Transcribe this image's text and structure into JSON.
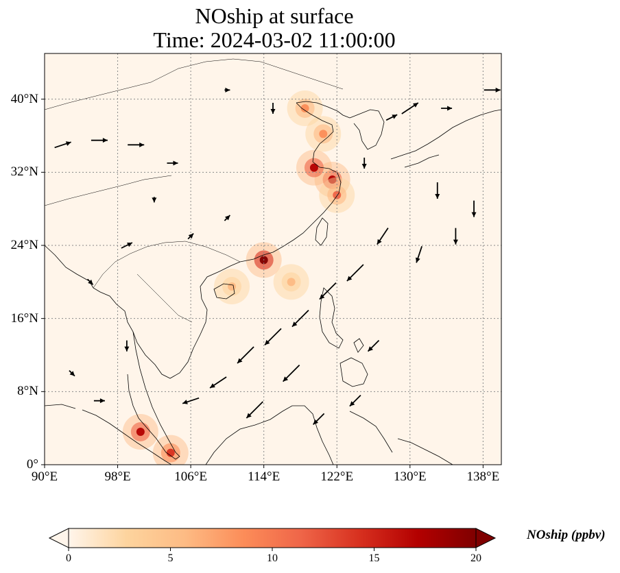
{
  "title": {
    "line1": "NOship at surface",
    "line2": "Time: 2024-03-02 11:00:00"
  },
  "map": {
    "lon_range": [
      90,
      140
    ],
    "lat_range": [
      0,
      45
    ],
    "lon_ticks": [
      "90°E",
      "98°E",
      "106°E",
      "114°E",
      "122°E",
      "130°E",
      "138°E"
    ],
    "lat_ticks": [
      "0°",
      "8°N",
      "16°N",
      "24°N",
      "32°N",
      "40°N"
    ],
    "gridlines": true,
    "background_color": "#fff5ea",
    "coastline_color": "#000000"
  },
  "colorbar": {
    "label": "NOship (ppbv)",
    "ticks": [
      "0",
      "5",
      "10",
      "15",
      "20"
    ],
    "range": [
      0,
      20
    ],
    "extend": "both",
    "colormap": [
      "#fff5eb",
      "#fdd49e",
      "#fdbb84",
      "#fc8d59",
      "#ef6548",
      "#d7301f",
      "#b30000",
      "#7f0000"
    ]
  },
  "chart_data": {
    "type": "heatmap",
    "variable": "NOship",
    "units": "ppbv",
    "hotspots": [
      {
        "lon": 114.0,
        "lat": 22.4,
        "value": 20
      },
      {
        "lon": 121.5,
        "lat": 31.2,
        "value": 18
      },
      {
        "lon": 119.5,
        "lat": 32.5,
        "value": 17
      },
      {
        "lon": 100.5,
        "lat": 3.6,
        "value": 16
      },
      {
        "lon": 103.8,
        "lat": 1.3,
        "value": 15
      },
      {
        "lon": 120.5,
        "lat": 36.2,
        "value": 8
      },
      {
        "lon": 118.5,
        "lat": 39.0,
        "value": 9
      },
      {
        "lon": 122.0,
        "lat": 29.5,
        "value": 10
      },
      {
        "lon": 110.5,
        "lat": 19.5,
        "value": 6
      },
      {
        "lon": 117.0,
        "lat": 20.0,
        "value": 5
      }
    ],
    "wind_vectors": [
      {
        "lon": 92,
        "lat": 35,
        "u": 3,
        "v": 1
      },
      {
        "lon": 96,
        "lat": 35.5,
        "u": 3,
        "v": 0
      },
      {
        "lon": 100,
        "lat": 35,
        "u": 3,
        "v": 0
      },
      {
        "lon": 104,
        "lat": 33,
        "u": 2,
        "v": 0
      },
      {
        "lon": 130,
        "lat": 39,
        "u": 3,
        "v": 2
      },
      {
        "lon": 134,
        "lat": 39,
        "u": 2,
        "v": 0
      },
      {
        "lon": 139,
        "lat": 41,
        "u": 3,
        "v": 0
      },
      {
        "lon": 128,
        "lat": 38,
        "u": 2,
        "v": 1
      },
      {
        "lon": 115,
        "lat": 14,
        "u": -3,
        "v": -3
      },
      {
        "lon": 112,
        "lat": 12,
        "u": -3,
        "v": -3
      },
      {
        "lon": 109,
        "lat": 9,
        "u": -3,
        "v": -2
      },
      {
        "lon": 118,
        "lat": 16,
        "u": -3,
        "v": -3
      },
      {
        "lon": 121,
        "lat": 19,
        "u": -3,
        "v": -3
      },
      {
        "lon": 124,
        "lat": 21,
        "u": -3,
        "v": -3
      },
      {
        "lon": 117,
        "lat": 10,
        "u": -3,
        "v": -3
      },
      {
        "lon": 113,
        "lat": 6,
        "u": -3,
        "v": -3
      },
      {
        "lon": 106,
        "lat": 7,
        "u": -3,
        "v": -1
      },
      {
        "lon": 126,
        "lat": 13,
        "u": -2,
        "v": -2
      },
      {
        "lon": 127,
        "lat": 25,
        "u": -2,
        "v": -3
      },
      {
        "lon": 131,
        "lat": 23,
        "u": -1,
        "v": -3
      },
      {
        "lon": 135,
        "lat": 25,
        "u": 0,
        "v": -3
      },
      {
        "lon": 133,
        "lat": 30,
        "u": 0,
        "v": -3
      },
      {
        "lon": 137,
        "lat": 28,
        "u": 0,
        "v": -3
      },
      {
        "lon": 125,
        "lat": 33,
        "u": 0,
        "v": -2
      },
      {
        "lon": 110,
        "lat": 27,
        "u": 1,
        "v": 1
      },
      {
        "lon": 106,
        "lat": 25,
        "u": 1,
        "v": 1
      },
      {
        "lon": 99,
        "lat": 24,
        "u": 2,
        "v": 1
      },
      {
        "lon": 95,
        "lat": 20,
        "u": 1,
        "v": -1
      },
      {
        "lon": 99,
        "lat": 13,
        "u": 0,
        "v": -2
      },
      {
        "lon": 93,
        "lat": 10,
        "u": 1,
        "v": -1
      },
      {
        "lon": 96,
        "lat": 7,
        "u": 2,
        "v": 0
      },
      {
        "lon": 120,
        "lat": 5,
        "u": -2,
        "v": -2
      },
      {
        "lon": 124,
        "lat": 7,
        "u": -2,
        "v": -2
      },
      {
        "lon": 102,
        "lat": 29,
        "u": 0,
        "v": -1
      },
      {
        "lon": 115,
        "lat": 39,
        "u": 0,
        "v": -2
      },
      {
        "lon": 110,
        "lat": 41,
        "u": 1,
        "v": 0
      }
    ]
  }
}
